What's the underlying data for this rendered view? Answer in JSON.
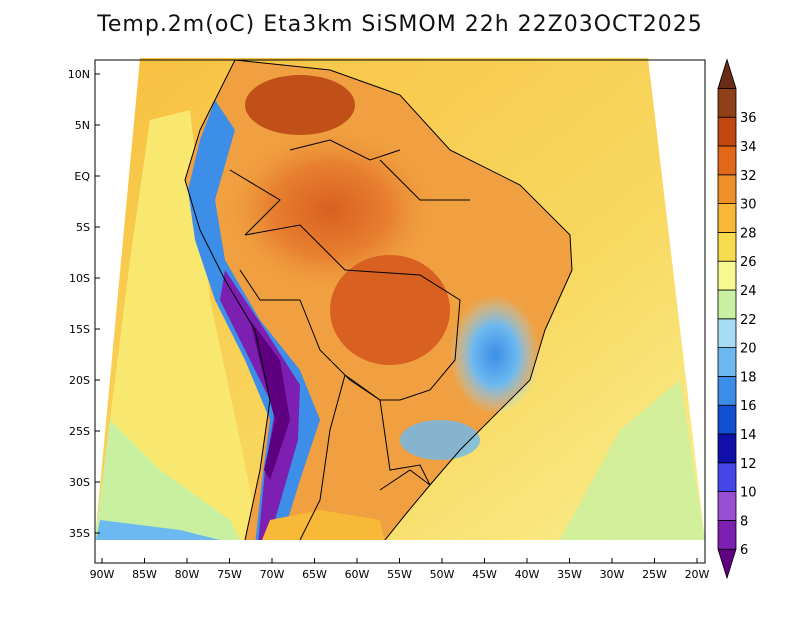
{
  "title": "Temp.2m(oC) Eta3km SiSMOM 22h 22Z03OCT2025",
  "lat_ticks": [
    "10N",
    "5N",
    "EQ",
    "5S",
    "10S",
    "15S",
    "20S",
    "25S",
    "30S",
    "35S"
  ],
  "lon_ticks": [
    "90W",
    "85W",
    "80W",
    "75W",
    "70W",
    "65W",
    "60W",
    "55W",
    "50W",
    "45W",
    "40W",
    "35W",
    "30W",
    "25W",
    "20W"
  ],
  "colorbar": {
    "labels": [
      "6",
      "8",
      "10",
      "12",
      "14",
      "16",
      "18",
      "20",
      "22",
      "24",
      "26",
      "28",
      "30",
      "32",
      "34",
      "36"
    ],
    "colors": [
      "#5e0080",
      "#7d1fb0",
      "#9a4fd2",
      "#4545e8",
      "#1010a8",
      "#1050d0",
      "#3c8ee8",
      "#6cb8f0",
      "#a8dcf4",
      "#c8f0a0",
      "#f8f890",
      "#f8dc50",
      "#f8b838",
      "#f09028",
      "#e06818",
      "#c04810",
      "#904018",
      "#6a2c14"
    ]
  }
}
